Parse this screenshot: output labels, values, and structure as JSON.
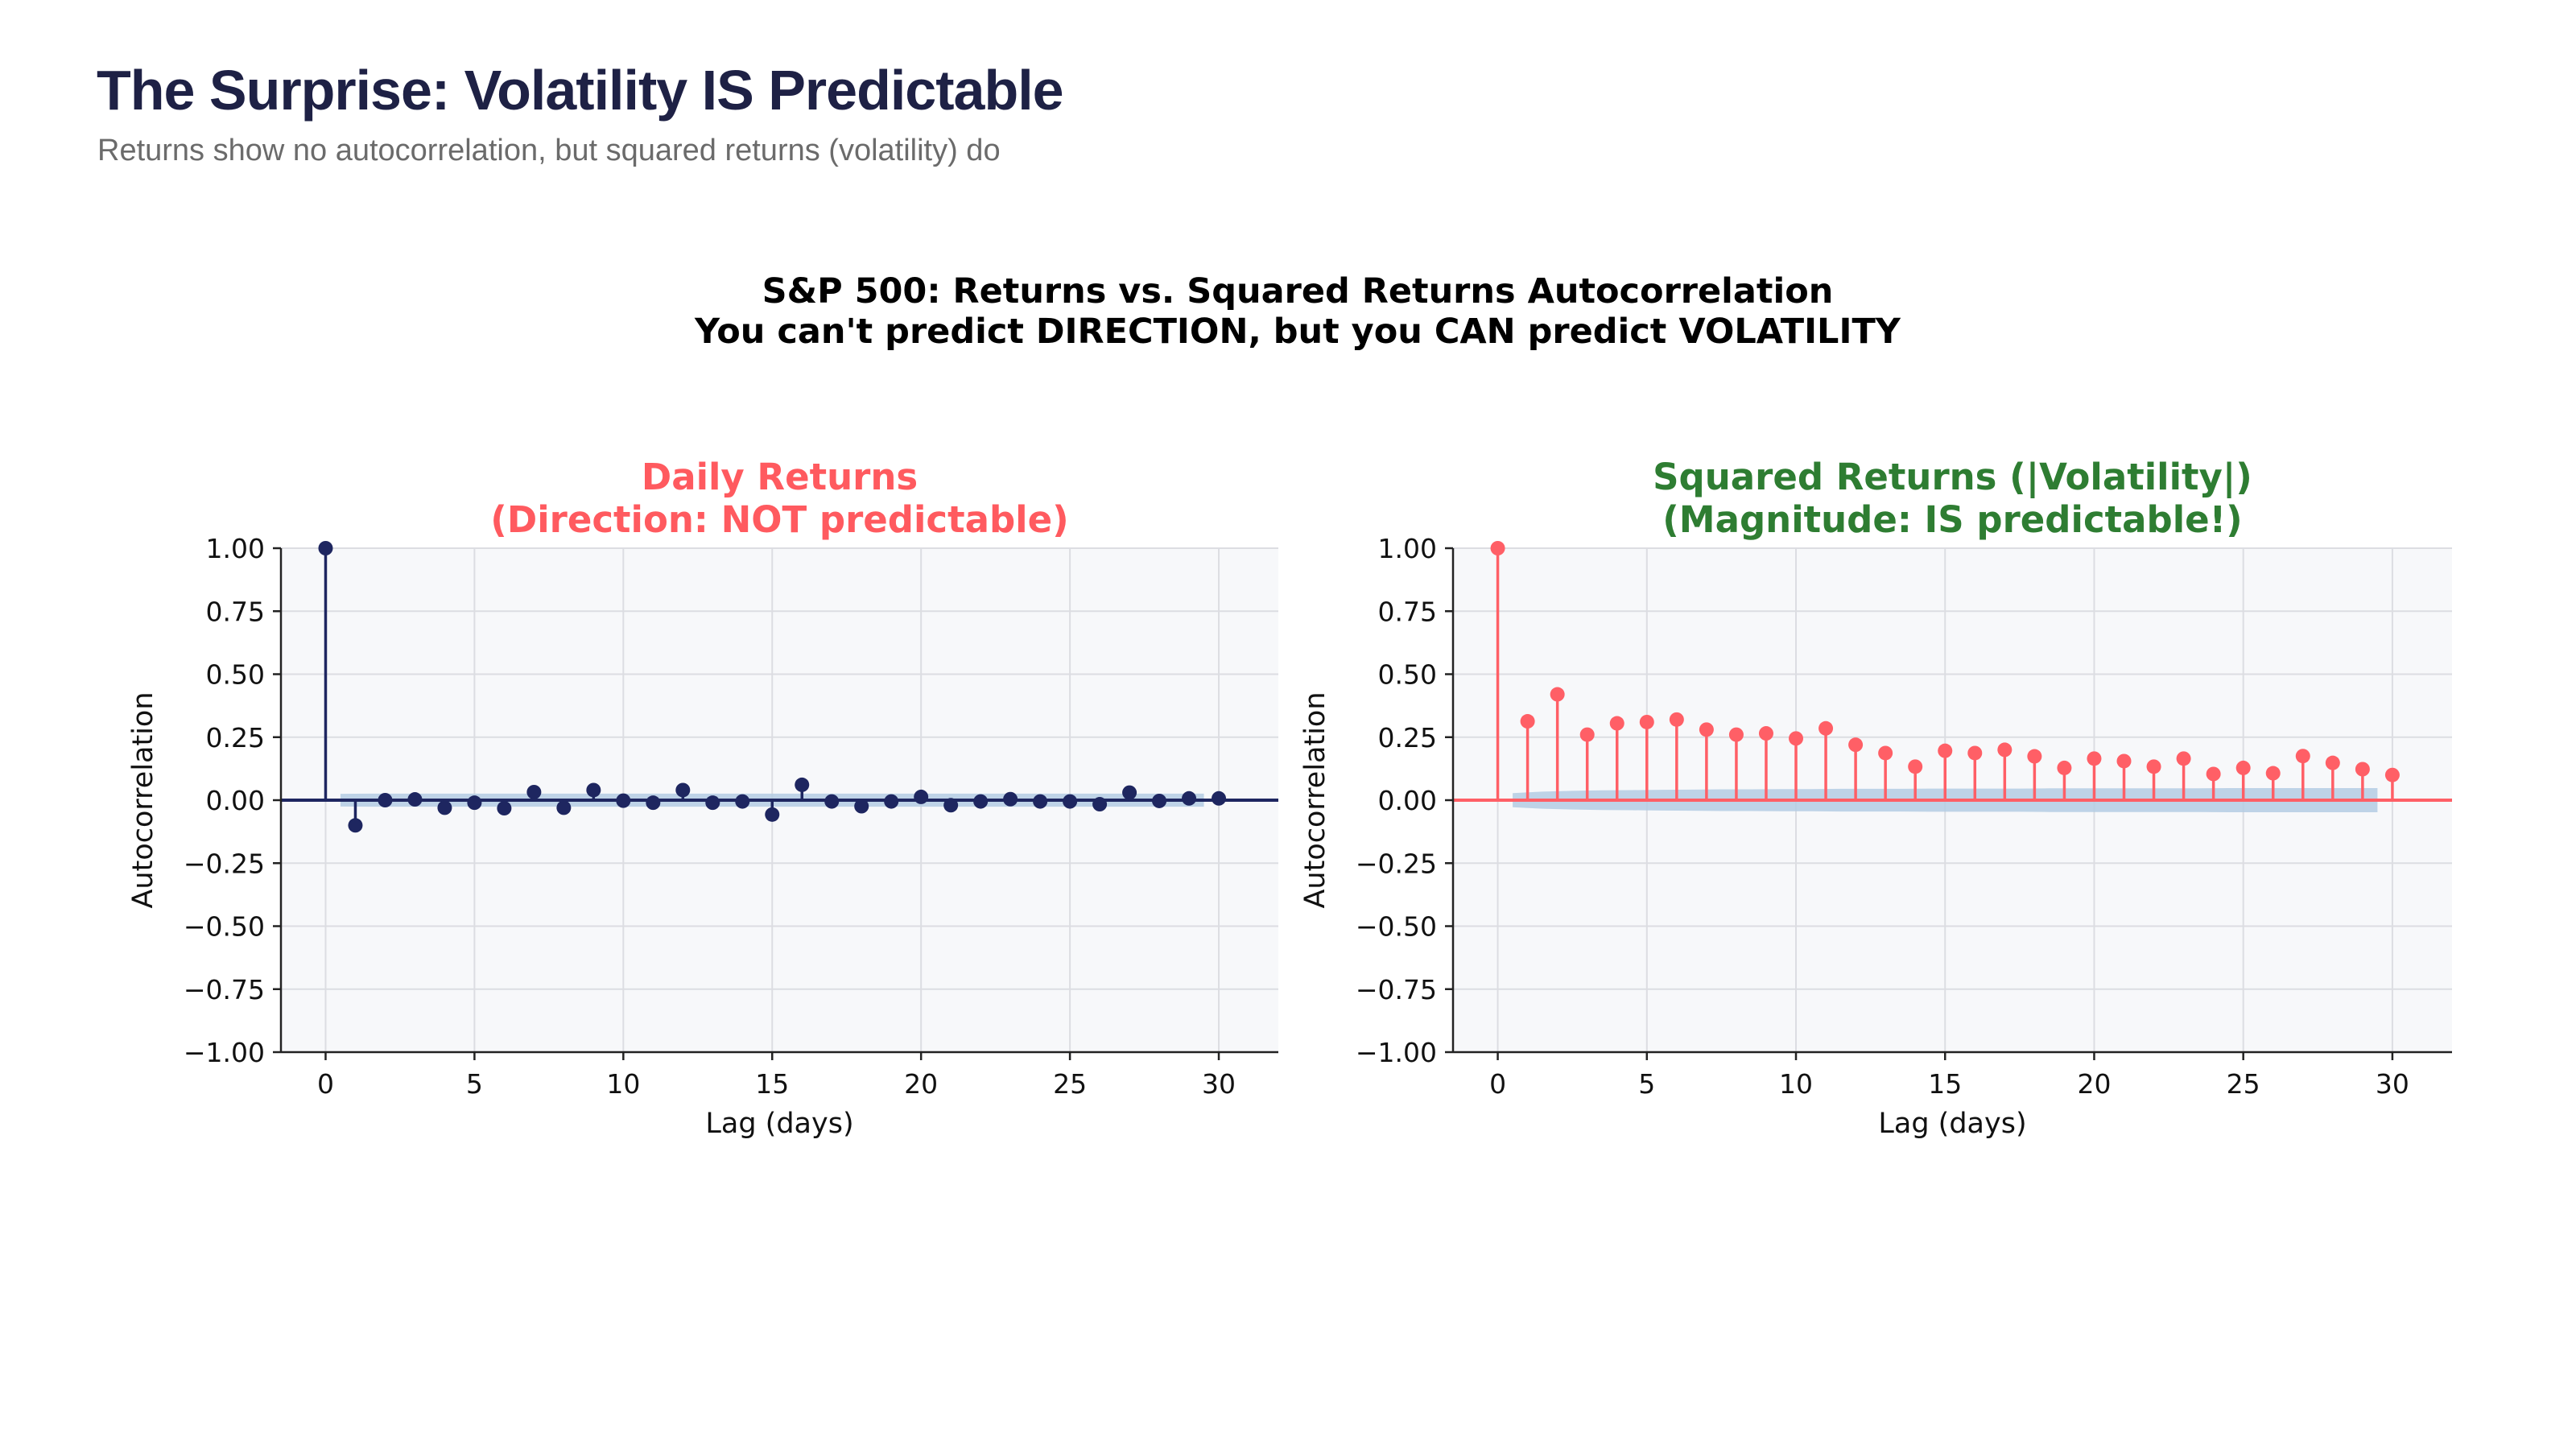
{
  "header": {
    "title": "The Surprise: Volatility IS Predictable",
    "subtitle": "Returns show no autocorrelation, but squared returns (volatility) do"
  },
  "figure": {
    "suptitle_line1": "S&P 500: Returns vs. Squared Returns Autocorrelation",
    "suptitle_line2": "You can't predict DIRECTION, but you CAN predict VOLATILITY"
  },
  "chart_data": [
    {
      "type": "stem",
      "title_line1": "Daily Returns",
      "title_line2": "(Direction: NOT predictable)",
      "title_color": "#ff5a5f",
      "color": "#1e2660",
      "band_color": "#b4cde3",
      "xlabel": "Lag (days)",
      "ylabel": "Autocorrelation",
      "xlim": [
        -1.5,
        32
      ],
      "ylim": [
        -1,
        1
      ],
      "xticks": [
        0,
        5,
        10,
        15,
        20,
        25,
        30
      ],
      "yticks": [
        -1,
        -0.75,
        -0.5,
        -0.25,
        0,
        0.25,
        0.5,
        0.75,
        1
      ],
      "ytick_labels": [
        "−1.00",
        "−0.75",
        "−0.50",
        "−0.25",
        "0.00",
        "0.25",
        "0.50",
        "0.75",
        "1.00"
      ],
      "grid": true,
      "x": [
        0,
        1,
        2,
        3,
        4,
        5,
        6,
        7,
        8,
        9,
        10,
        11,
        12,
        13,
        14,
        15,
        16,
        17,
        18,
        19,
        20,
        21,
        22,
        23,
        24,
        25,
        26,
        27,
        28,
        29,
        30
      ],
      "values": [
        1.0,
        -0.1,
        0.0,
        0.003,
        -0.03,
        -0.01,
        -0.032,
        0.032,
        -0.03,
        0.04,
        -0.002,
        -0.01,
        0.04,
        -0.01,
        -0.005,
        -0.057,
        0.061,
        -0.005,
        -0.024,
        -0.005,
        0.013,
        -0.02,
        -0.005,
        0.004,
        -0.005,
        -0.005,
        -0.016,
        0.03,
        -0.003,
        0.007,
        0.007
      ],
      "confidence_upper": [
        0.025,
        0.026,
        0.026,
        0.026,
        0.026,
        0.026,
        0.026,
        0.026,
        0.026,
        0.026,
        0.026,
        0.026,
        0.026,
        0.026,
        0.026,
        0.026,
        0.026,
        0.026,
        0.026,
        0.026,
        0.026,
        0.026,
        0.026,
        0.026,
        0.026,
        0.026,
        0.026,
        0.026,
        0.026,
        0.026
      ]
    },
    {
      "type": "stem",
      "title_line1": "Squared Returns (|Volatility|)",
      "title_line2": "(Magnitude: IS predictable!)",
      "title_color": "#2e7d32",
      "color": "#ff5f66",
      "band_color": "#b4cde3",
      "xlabel": "Lag (days)",
      "ylabel": "Autocorrelation",
      "xlim": [
        -1.5,
        32
      ],
      "ylim": [
        -1,
        1
      ],
      "xticks": [
        0,
        5,
        10,
        15,
        20,
        25,
        30
      ],
      "yticks": [
        -1,
        -0.75,
        -0.5,
        -0.25,
        0,
        0.25,
        0.5,
        0.75,
        1
      ],
      "ytick_labels": [
        "−1.00",
        "−0.75",
        "−0.50",
        "−0.25",
        "0.00",
        "0.25",
        "0.50",
        "0.75",
        "1.00"
      ],
      "grid": true,
      "x": [
        0,
        1,
        2,
        3,
        4,
        5,
        6,
        7,
        8,
        9,
        10,
        11,
        12,
        13,
        14,
        15,
        16,
        17,
        18,
        19,
        20,
        21,
        22,
        23,
        24,
        25,
        26,
        27,
        28,
        29,
        30
      ],
      "values": [
        1.0,
        0.313,
        0.42,
        0.26,
        0.305,
        0.31,
        0.32,
        0.28,
        0.26,
        0.265,
        0.245,
        0.285,
        0.22,
        0.187,
        0.133,
        0.196,
        0.187,
        0.2,
        0.174,
        0.128,
        0.165,
        0.155,
        0.133,
        0.165,
        0.104,
        0.128,
        0.107,
        0.175,
        0.148,
        0.123,
        0.1
      ],
      "confidence_upper": [
        0.028,
        0.034,
        0.037,
        0.039,
        0.04,
        0.041,
        0.042,
        0.043,
        0.043,
        0.044,
        0.044,
        0.045,
        0.045,
        0.045,
        0.046,
        0.046,
        0.046,
        0.046,
        0.047,
        0.047,
        0.047,
        0.047,
        0.047,
        0.047,
        0.048,
        0.048,
        0.048,
        0.048,
        0.048,
        0.048
      ]
    }
  ]
}
